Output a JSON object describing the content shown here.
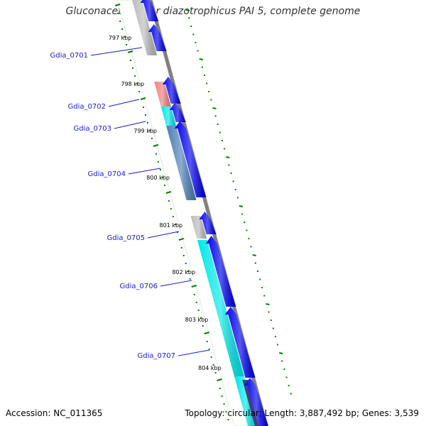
{
  "title": "Gluconacetobacter diazotrophicus PAI 5, complete genome",
  "footer": {
    "accession": "Accession: NC_011365",
    "summary": "Topology: circular; Length: 3,887,492 bp; Genes: 3,539"
  },
  "colors": {
    "backbone": "#808080",
    "cds_arrow": "#0000ee",
    "tick": "#008000",
    "label_line": "#1a1acc"
  },
  "kbp_ticks": [
    "797 kbp",
    "798 kbp",
    "799 kbp",
    "800 kbp",
    "801 kbp",
    "802 kbp",
    "803 kbp",
    "804 kbp"
  ],
  "genes": [
    {
      "name": "Gdia_0701",
      "color": "#bbbbbb"
    },
    {
      "name": "Gdia_0702",
      "color": "#f08080"
    },
    {
      "name": "Gdia_0703",
      "color": "#00e8e8"
    },
    {
      "name": "Gdia_0704",
      "color": "#4d7fb5"
    },
    {
      "name": "Gdia_0705",
      "color": "#bbbbbb"
    },
    {
      "name": "Gdia_0706",
      "color": "#00e8e8"
    },
    {
      "name": "Gdia_0707",
      "color": "#00e8e8"
    }
  ]
}
